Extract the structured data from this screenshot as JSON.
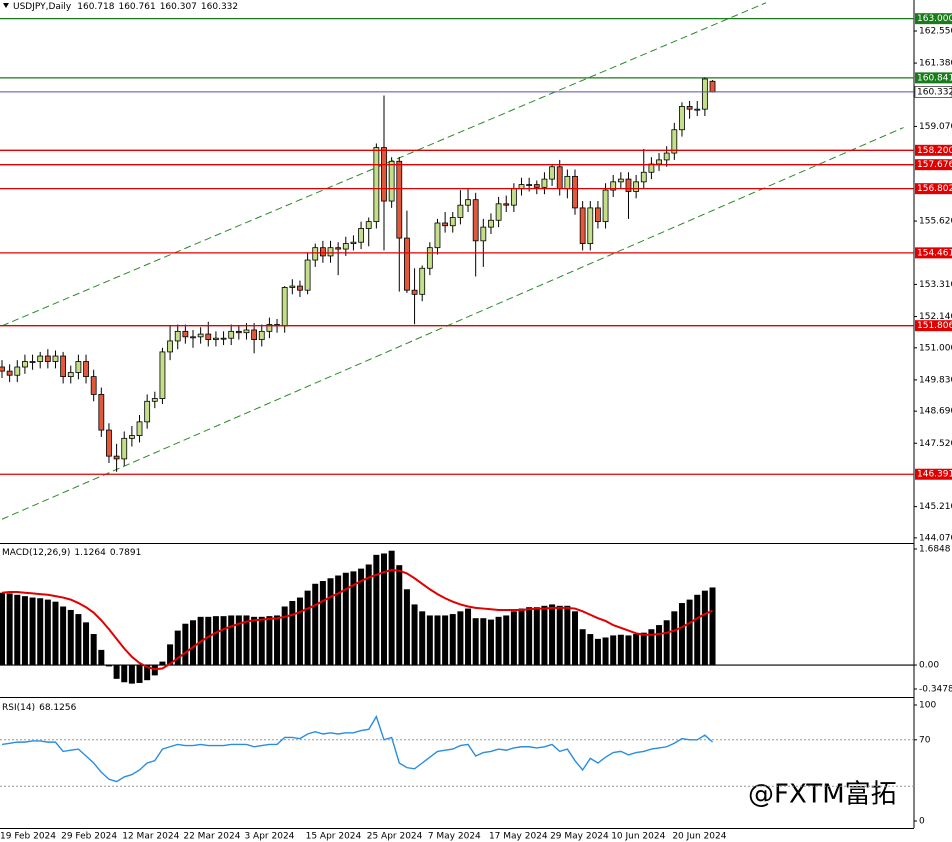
{
  "chart_data": [
    {
      "type": "candlestick",
      "title": "USDJPY,Daily",
      "up_color": "#c3df8a",
      "down_color": "#e2583a",
      "wick_color": "#000000",
      "bid_color": "#5050b8",
      "categories": [
        "19 Feb 2024",
        null,
        null,
        null,
        null,
        null,
        null,
        null,
        "29 Feb 2024",
        null,
        null,
        null,
        null,
        null,
        null,
        null,
        "12 Mar 2024",
        null,
        null,
        null,
        null,
        null,
        null,
        null,
        "22 Mar 2024",
        null,
        null,
        null,
        null,
        null,
        null,
        null,
        "3 Apr 2024",
        null,
        null,
        null,
        null,
        null,
        null,
        null,
        "15 Apr 2024",
        null,
        null,
        null,
        null,
        null,
        null,
        null,
        "25 Apr 2024",
        null,
        null,
        null,
        null,
        null,
        null,
        null,
        "7 May 2024",
        null,
        null,
        null,
        null,
        null,
        null,
        null,
        "17 May 2024",
        null,
        null,
        null,
        null,
        null,
        null,
        null,
        "29 May 2024",
        null,
        null,
        null,
        null,
        null,
        null,
        null,
        "10 Jun 2024",
        null,
        null,
        null,
        null,
        null,
        null,
        null,
        "20 Jun 2024",
        null,
        null,
        null,
        null,
        null
      ],
      "open": [
        150.3,
        150.15,
        150,
        150.3,
        150.5,
        150.5,
        150.7,
        150.5,
        150.7,
        149.95,
        150.1,
        150.5,
        149.95,
        149.3,
        148,
        147.05,
        146.95,
        147.7,
        147.8,
        148.3,
        149.05,
        149.15,
        150.85,
        151.25,
        151.6,
        151.4,
        151.4,
        151.5,
        151.3,
        151.35,
        151.35,
        151.6,
        151.55,
        151.65,
        151.3,
        151.6,
        151.85,
        151.8,
        153.2,
        153.25,
        153.1,
        154.2,
        154.65,
        154.35,
        154.65,
        154.6,
        154.8,
        154.85,
        155.35,
        155.6,
        158.3,
        156.35,
        157.8,
        155,
        153.1,
        152.95,
        153.9,
        154.65,
        155.55,
        155.45,
        155.75,
        156.2,
        156.4,
        154.9,
        155.4,
        155.65,
        156.25,
        156.2,
        156.8,
        156.95,
        156.95,
        156.85,
        157.15,
        157.6,
        156.8,
        157.25,
        156.1,
        154.8,
        156.1,
        155.6,
        156.75,
        157.05,
        157.15,
        156.7,
        157.05,
        157.4,
        157.7,
        157.85,
        158.1,
        158.95,
        159.8,
        159.7,
        159.7,
        160.718
      ],
      "high": [
        150.55,
        150.4,
        150.55,
        150.75,
        150.75,
        150.85,
        150.95,
        150.9,
        150.85,
        150.35,
        150.75,
        150.75,
        150.2,
        149.55,
        148.25,
        147.5,
        147.95,
        148.15,
        148.55,
        149.3,
        149.4,
        151,
        151.8,
        151.85,
        151.85,
        151.65,
        151.75,
        151.95,
        151.6,
        151.6,
        151.85,
        151.8,
        151.9,
        151.9,
        151.85,
        152.1,
        152.05,
        153.25,
        153.5,
        153.45,
        154.45,
        154.8,
        154.9,
        154.9,
        154.85,
        155.05,
        155.1,
        155.6,
        155.75,
        158.45,
        160.2,
        157.95,
        157.95,
        156,
        153.9,
        154,
        154.85,
        155.7,
        155.95,
        155.95,
        156.75,
        156.8,
        156.65,
        155.7,
        155.9,
        156.5,
        156.55,
        157,
        157.2,
        157.2,
        157.1,
        157.4,
        157.7,
        157.85,
        157.5,
        157.5,
        156.35,
        156.35,
        156.35,
        157,
        157.3,
        157.4,
        157.4,
        157.3,
        158.25,
        157.95,
        158.1,
        158.35,
        159.2,
        159.95,
        160,
        160,
        160.87,
        160.761
      ],
      "low": [
        149.9,
        149.75,
        149.75,
        150.05,
        150.2,
        150.25,
        150.25,
        150.25,
        149.7,
        149.7,
        149.85,
        149.7,
        149.05,
        147.75,
        146.8,
        146.48,
        146.7,
        147.4,
        147.55,
        148.05,
        148.8,
        148.95,
        150.55,
        150.95,
        151.15,
        151,
        151.15,
        151.05,
        151.05,
        151.1,
        151.1,
        151.3,
        151.3,
        150.8,
        151.05,
        151.35,
        151.55,
        151.55,
        152.95,
        152.85,
        152.95,
        153.95,
        154.1,
        154.1,
        153.65,
        154.35,
        154.55,
        154.6,
        154.7,
        155.35,
        154.55,
        156.1,
        153.05,
        153,
        151.86,
        152.7,
        153.65,
        154.4,
        155.2,
        155.2,
        155.5,
        155.95,
        153.6,
        153.95,
        155.15,
        155.4,
        155.95,
        155.95,
        156.55,
        156.7,
        156.6,
        156.6,
        156.9,
        156.55,
        156.45,
        155.85,
        154.55,
        154.55,
        155.35,
        155.35,
        156.5,
        156.8,
        155.7,
        156.45,
        156.8,
        157.15,
        157.45,
        157.6,
        157.85,
        158.7,
        159.35,
        159.45,
        159.45,
        160.307
      ],
      "close": [
        150.15,
        150,
        150.3,
        150.5,
        150.5,
        150.7,
        150.5,
        150.7,
        149.95,
        150.1,
        150.5,
        149.95,
        149.3,
        148,
        147.05,
        146.95,
        147.7,
        147.8,
        148.3,
        149.05,
        149.15,
        150.85,
        151.25,
        151.6,
        151.4,
        151.4,
        151.5,
        151.3,
        151.35,
        151.35,
        151.6,
        151.55,
        151.65,
        151.3,
        151.6,
        151.85,
        151.8,
        153.2,
        153.25,
        153.1,
        154.2,
        154.65,
        154.35,
        154.65,
        154.6,
        154.8,
        154.85,
        155.35,
        155.6,
        158.3,
        156.35,
        157.8,
        155,
        153.1,
        152.95,
        153.9,
        154.65,
        155.55,
        155.45,
        155.75,
        156.2,
        156.4,
        154.9,
        155.4,
        155.65,
        156.25,
        156.2,
        156.8,
        156.95,
        156.95,
        156.85,
        157.15,
        157.6,
        156.8,
        157.25,
        156.1,
        154.8,
        156.1,
        155.6,
        156.75,
        157.05,
        157.15,
        156.7,
        157.05,
        157.4,
        157.7,
        157.85,
        158.1,
        158.95,
        159.8,
        159.7,
        159.7,
        160.8,
        160.332
      ],
      "ylim": [
        143.92,
        163.68
      ],
      "yticks": [
        {
          "value": 162.55,
          "label": "162.550"
        },
        {
          "value": 161.38,
          "label": "161.380"
        },
        {
          "value": 159.07,
          "label": "159.070"
        },
        {
          "value": 155.62,
          "label": "155.620"
        },
        {
          "value": 153.31,
          "label": "153.310"
        },
        {
          "value": 152.14,
          "label": "152.140"
        },
        {
          "value": 151,
          "label": "151.000"
        },
        {
          "value": 149.83,
          "label": "149.830"
        },
        {
          "value": 148.69,
          "label": "148.690"
        },
        {
          "value": 147.52,
          "label": "147.520"
        },
        {
          "value": 145.21,
          "label": "145.210"
        },
        {
          "value": 144.07,
          "label": "144.070"
        }
      ],
      "levels": [
        {
          "value": 163,
          "label": "163.000",
          "color": "#1b7a1b"
        },
        {
          "value": 160.841,
          "label": "160.841",
          "color": "#1b7a1b"
        },
        {
          "value": 158.2,
          "label": "158.200",
          "color": "#e00000"
        },
        {
          "value": 157.676,
          "label": "157.676",
          "color": "#e00000"
        },
        {
          "value": 156.802,
          "label": "156.802",
          "color": "#e00000"
        },
        {
          "value": 154.461,
          "label": "154.461",
          "color": "#e00000"
        },
        {
          "value": 151.806,
          "label": "151.806",
          "color": "#e00000"
        },
        {
          "value": 146.391,
          "label": "146.391",
          "color": "#e00000"
        }
      ],
      "trendlines": [
        {
          "x": [
            0,
            100
          ],
          "y": [
            151.8,
            163.58
          ],
          "color": "#2a8a2a"
        },
        {
          "x": [
            0,
            118
          ],
          "y": [
            144.75,
            159.03
          ],
          "color": "#2a8a2a"
        }
      ]
    },
    {
      "type": "bar",
      "title": "MACD(12,26,9)",
      "series": [
        {
          "type": "bar",
          "color": "#000000",
          "values": [
            1.05,
            1.04,
            1.02,
            1,
            0.98,
            0.97,
            0.95,
            0.92,
            0.85,
            0.8,
            0.74,
            0.62,
            0.45,
            0.22,
            -0.02,
            -0.2,
            -0.25,
            -0.27,
            -0.26,
            -0.22,
            -0.15,
            0.05,
            0.3,
            0.5,
            0.6,
            0.65,
            0.7,
            0.7,
            0.71,
            0.71,
            0.72,
            0.72,
            0.72,
            0.7,
            0.7,
            0.71,
            0.72,
            0.85,
            0.93,
            0.98,
            1.08,
            1.18,
            1.22,
            1.26,
            1.3,
            1.34,
            1.36,
            1.4,
            1.46,
            1.6,
            1.62,
            1.66,
            1.45,
            1.1,
            0.88,
            0.78,
            0.72,
            0.72,
            0.72,
            0.74,
            0.78,
            0.82,
            0.68,
            0.68,
            0.66,
            0.7,
            0.72,
            0.78,
            0.82,
            0.84,
            0.84,
            0.86,
            0.88,
            0.86,
            0.86,
            0.78,
            0.52,
            0.45,
            0.38,
            0.4,
            0.43,
            0.44,
            0.43,
            0.45,
            0.47,
            0.52,
            0.58,
            0.65,
            0.78,
            0.9,
            0.95,
            1.02,
            1.08,
            1.1264
          ]
        },
        {
          "type": "line",
          "color": "#e00000",
          "values": [
            1.05,
            1.06,
            1.06,
            1.05,
            1.04,
            1.03,
            1.02,
            1,
            0.98,
            0.95,
            0.9,
            0.84,
            0.76,
            0.65,
            0.52,
            0.38,
            0.24,
            0.12,
            0.03,
            -0.03,
            -0.06,
            -0.05,
            0.02,
            0.1,
            0.18,
            0.26,
            0.34,
            0.41,
            0.47,
            0.52,
            0.56,
            0.6,
            0.63,
            0.65,
            0.66,
            0.67,
            0.68,
            0.7,
            0.73,
            0.77,
            0.82,
            0.87,
            0.93,
            0.99,
            1.04,
            1.1,
            1.16,
            1.22,
            1.27,
            1.31,
            1.35,
            1.38,
            1.37,
            1.33,
            1.26,
            1.18,
            1.1,
            1.03,
            0.97,
            0.92,
            0.88,
            0.85,
            0.83,
            0.82,
            0.81,
            0.8,
            0.8,
            0.8,
            0.8,
            0.81,
            0.82,
            0.82,
            0.83,
            0.83,
            0.83,
            0.82,
            0.78,
            0.73,
            0.68,
            0.64,
            0.58,
            0.54,
            0.5,
            0.46,
            0.44,
            0.44,
            0.45,
            0.47,
            0.5,
            0.55,
            0.61,
            0.68,
            0.74,
            0.7891
          ]
        }
      ],
      "ylim": [
        -0.3478,
        1.6848
      ],
      "yticks": [
        1.6848,
        {
          "value": 0,
          "label": "0.00"
        },
        -0.3478
      ]
    },
    {
      "type": "line",
      "title": "RSI(14)",
      "color": "#2a8ee0",
      "values": [
        66,
        67,
        68,
        68,
        69,
        69,
        68,
        68,
        60,
        61,
        62,
        56,
        50,
        42,
        36,
        34,
        38,
        40,
        44,
        50,
        52,
        62,
        64,
        66,
        65,
        65,
        66,
        65,
        65,
        65,
        66,
        66,
        66,
        64,
        65,
        66,
        66,
        72,
        72,
        71,
        75,
        77,
        75,
        76,
        75,
        76,
        76,
        78,
        79,
        90,
        70,
        72,
        50,
        46,
        45,
        50,
        55,
        60,
        61,
        62,
        65,
        66,
        56,
        59,
        60,
        62,
        61,
        63,
        64,
        64,
        63,
        64,
        66,
        60,
        62,
        52,
        44,
        54,
        50,
        55,
        59,
        60,
        57,
        59,
        60,
        62,
        63,
        64,
        67,
        71,
        70,
        70,
        74,
        68.1256
      ],
      "ylim": [
        0,
        100
      ],
      "yticks": [
        100,
        70,
        0
      ],
      "levels": [
        70,
        30
      ]
    }
  ],
  "watermark": "@FXTM富拓"
}
